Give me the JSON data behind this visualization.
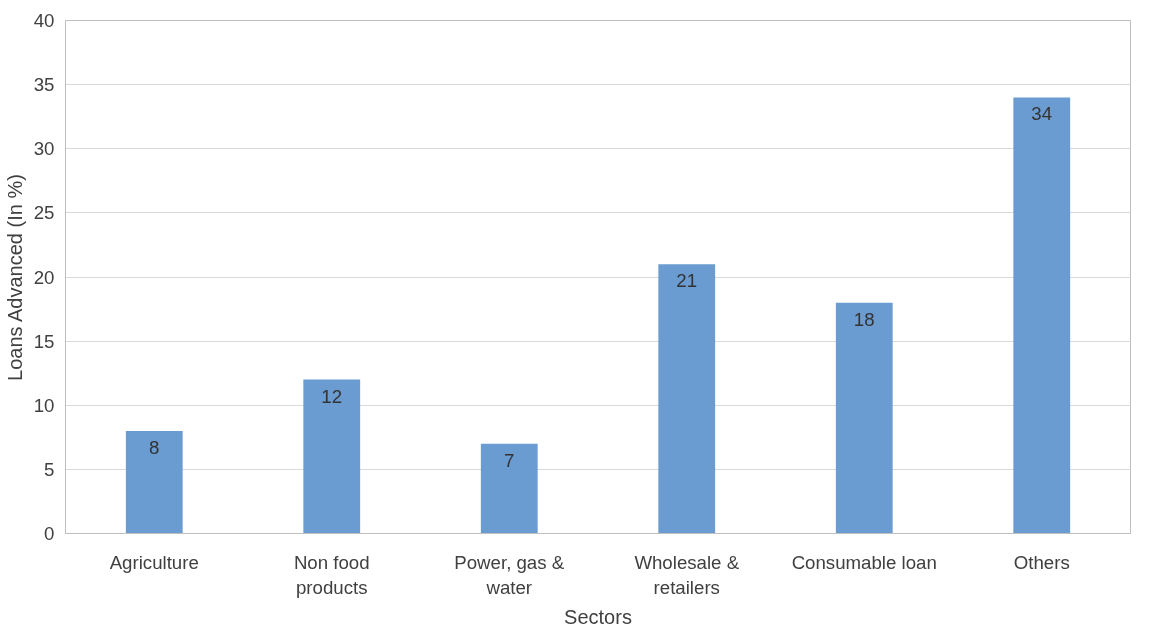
{
  "chart_data": {
    "type": "bar",
    "xlabel": "Sectors",
    "ylabel": "Loans Advanced (In %)",
    "categories": [
      "Agriculture",
      "Non food products",
      "Power, gas & water",
      "Wholesale & retailers",
      "Consumable loan",
      "Others"
    ],
    "values": [
      8,
      12,
      7,
      21,
      18,
      34
    ],
    "color": "#6a9bd1",
    "ylim": [
      0,
      40
    ],
    "yticks": [
      0,
      5,
      10,
      15,
      20,
      25,
      30,
      35,
      40
    ],
    "grid": "y",
    "data_labels": true
  }
}
